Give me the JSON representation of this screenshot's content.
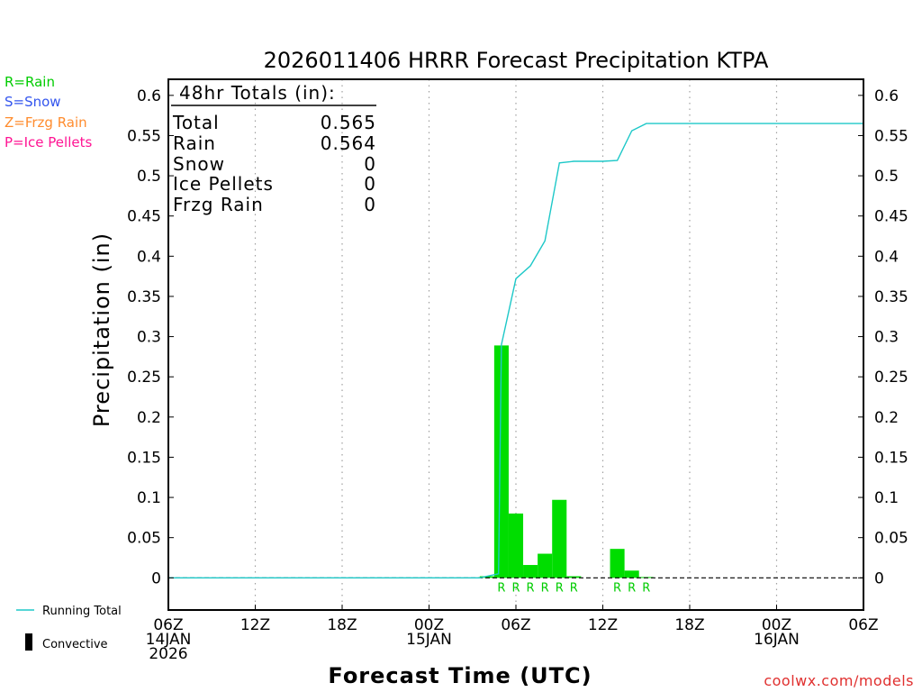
{
  "chart_data": {
    "type": "bar",
    "title": "2026011406 HRRR Forecast Precipitation KTPA",
    "xlabel": "Forecast Time (UTC)",
    "ylabel": "Precipitation (in)",
    "ylim": [
      -0.04,
      0.62
    ],
    "xlim_hours": [
      0,
      48
    ],
    "y_ticks": [
      "0",
      "0.05",
      "0.1",
      "0.15",
      "0.2",
      "0.25",
      "0.3",
      "0.35",
      "0.4",
      "0.45",
      "0.5",
      "0.55",
      "0.6"
    ],
    "x_ticks": [
      {
        "hour": 0,
        "lines": [
          "06Z",
          "14JAN",
          "2026"
        ]
      },
      {
        "hour": 6,
        "lines": [
          "12Z"
        ]
      },
      {
        "hour": 12,
        "lines": [
          "18Z"
        ]
      },
      {
        "hour": 18,
        "lines": [
          "00Z",
          "15JAN"
        ]
      },
      {
        "hour": 24,
        "lines": [
          "06Z"
        ]
      },
      {
        "hour": 30,
        "lines": [
          "12Z"
        ]
      },
      {
        "hour": 36,
        "lines": [
          "18Z"
        ]
      },
      {
        "hour": 42,
        "lines": [
          "00Z",
          "16JAN"
        ]
      },
      {
        "hour": 48,
        "lines": [
          "06Z"
        ]
      }
    ],
    "grid": true,
    "hourly_precip": [
      {
        "hour": 22,
        "value": 0.002,
        "ptype": ""
      },
      {
        "hour": 23,
        "value": 0.289,
        "ptype": "R"
      },
      {
        "hour": 24,
        "value": 0.08,
        "ptype": "R"
      },
      {
        "hour": 25,
        "value": 0.016,
        "ptype": "R"
      },
      {
        "hour": 26,
        "value": 0.03,
        "ptype": "R"
      },
      {
        "hour": 27,
        "value": 0.097,
        "ptype": "R"
      },
      {
        "hour": 28,
        "value": 0.002,
        "ptype": "R"
      },
      {
        "hour": 31,
        "value": 0.036,
        "ptype": "R"
      },
      {
        "hour": 32,
        "value": 0.009,
        "ptype": "R"
      },
      {
        "hour": 33,
        "value": 0.001,
        "ptype": "R"
      }
    ],
    "running_total": {
      "name": "Running Total",
      "x": [
        0,
        21.5,
        22,
        22.8,
        23,
        24,
        25,
        26,
        27,
        28,
        29,
        30,
        31,
        32,
        33,
        48
      ],
      "y": [
        0,
        0,
        0.002,
        0.005,
        0.29,
        0.372,
        0.388,
        0.419,
        0.516,
        0.518,
        0.518,
        0.518,
        0.519,
        0.556,
        0.565,
        0.565
      ]
    },
    "colors": {
      "bars": "#00dd00",
      "running_total": "#1ec8c8",
      "rain": "#00cc00",
      "snow": "#3355ee",
      "frzg_rain": "#ff8c2e",
      "ice_pellets": "#ff1493",
      "credit": "#e0302f"
    },
    "totals_box": {
      "header": "48hr Totals (in):",
      "rows": [
        {
          "label": "Total",
          "value": "0.565"
        },
        {
          "label": "Rain",
          "value": "0.564"
        },
        {
          "label": "Snow",
          "value": "0"
        },
        {
          "label": "Ice Pellets",
          "value": "0"
        },
        {
          "label": "Frzg Rain",
          "value": "0"
        }
      ]
    },
    "ptype_legend": [
      "R=Rain",
      "S=Snow",
      "Z=Frzg Rain",
      "P=Ice Pellets"
    ],
    "series_legend": {
      "running_total": "Running Total",
      "convective": "Convective"
    },
    "credit": "coolwx.com/models"
  }
}
